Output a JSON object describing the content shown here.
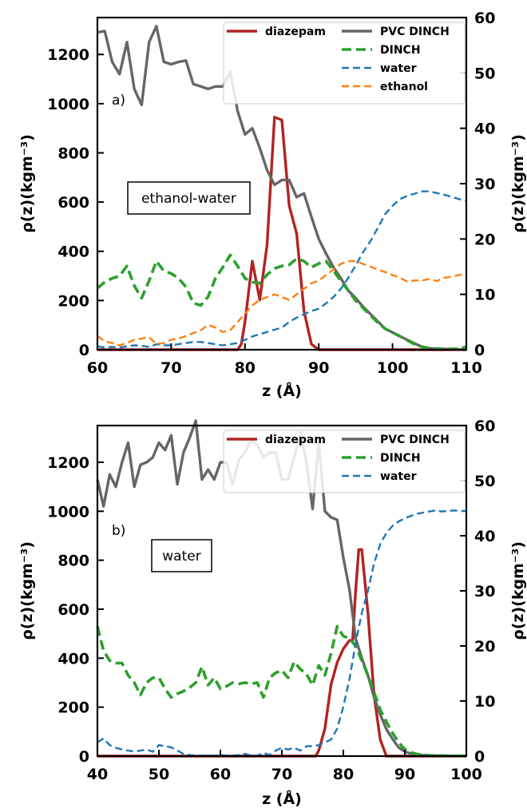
{
  "chart_data": [
    {
      "type": "line",
      "panel_label": "a)",
      "annotation": "ethanol-water",
      "xlabel": "z (Å)",
      "ylabel_left": "ρ(z)(kgm⁻³)",
      "ylabel_right": "ρ(z)(kgm⁻³)",
      "xlim": [
        60,
        110
      ],
      "ylim_left": [
        0,
        1350
      ],
      "ylim_right": [
        0,
        60
      ],
      "xticks": [
        "60",
        "70",
        "80",
        "90",
        "100",
        "110"
      ],
      "yticks_left": [
        "0",
        "200",
        "400",
        "600",
        "800",
        "1000",
        "1200"
      ],
      "yticks_right": [
        "0",
        "10",
        "20",
        "30",
        "40",
        "50",
        "60"
      ],
      "grid": false,
      "legend_position": "top-right",
      "series": [
        {
          "name": "diazepam",
          "axis": "right",
          "color": "#b22222",
          "style": "solid",
          "width": 3.4,
          "x": [
            60,
            79,
            79.5,
            80,
            81,
            82,
            83,
            84,
            85,
            86,
            87,
            88,
            89,
            90,
            110
          ],
          "y": [
            0,
            0,
            1,
            5,
            16,
            9,
            19,
            42,
            41.5,
            26,
            21,
            7,
            1,
            0,
            0
          ]
        },
        {
          "name": "PVC DINCH",
          "axis": "left",
          "color": "#666666",
          "style": "solid",
          "width": 3.4,
          "x": [
            60,
            61,
            62,
            63,
            64,
            65,
            66,
            67,
            68,
            69,
            70,
            71,
            72,
            73,
            74,
            75,
            76,
            77,
            78,
            79,
            80,
            81,
            82,
            83,
            84,
            85,
            86,
            87,
            88,
            89,
            90,
            91,
            92,
            93,
            94,
            95,
            96,
            97,
            98,
            99,
            100,
            101,
            102,
            103,
            104,
            105,
            106,
            107,
            108,
            109,
            110
          ],
          "y": [
            1290,
            1295,
            1170,
            1120,
            1250,
            1060,
            995,
            1250,
            1315,
            1170,
            1160,
            1170,
            1175,
            1080,
            1070,
            1060,
            1070,
            1070,
            1130,
            970,
            875,
            900,
            820,
            730,
            670,
            690,
            690,
            620,
            635,
            540,
            450,
            390,
            335,
            290,
            240,
            210,
            175,
            145,
            115,
            85,
            70,
            55,
            40,
            25,
            12,
            6,
            4,
            3,
            2,
            1,
            0
          ]
        },
        {
          "name": "DINCH",
          "axis": "left",
          "color": "#2ca02c",
          "style": "dashed-bold",
          "width": 3.6,
          "x": [
            60,
            61,
            62,
            63,
            64,
            65,
            66,
            67,
            68,
            69,
            70,
            71,
            72,
            73,
            74,
            75,
            76,
            77,
            78,
            79,
            80,
            81,
            82,
            83,
            84,
            85,
            86,
            87,
            88,
            89,
            90,
            91,
            92,
            93,
            94,
            95,
            96,
            97,
            98,
            99,
            100,
            101,
            102,
            103,
            104,
            105,
            106,
            107,
            108,
            109,
            110
          ],
          "y": [
            250,
            275,
            290,
            300,
            340,
            260,
            210,
            280,
            360,
            320,
            310,
            290,
            255,
            190,
            180,
            215,
            290,
            335,
            385,
            340,
            290,
            275,
            270,
            305,
            330,
            340,
            345,
            370,
            360,
            335,
            350,
            360,
            320,
            280,
            240,
            200,
            170,
            140,
            110,
            85,
            70,
            55,
            38,
            22,
            12,
            6,
            4,
            3,
            3,
            4,
            12
          ]
        },
        {
          "name": "water",
          "axis": "right",
          "color": "#1f77b4",
          "style": "dashed",
          "width": 2.4,
          "x": [
            60,
            61,
            62,
            63,
            64,
            65,
            66,
            67,
            68,
            69,
            70,
            71,
            72,
            73,
            74,
            75,
            76,
            77,
            78,
            79,
            80,
            81,
            82,
            83,
            84,
            85,
            86,
            87,
            88,
            89,
            90,
            91,
            92,
            93,
            94,
            95,
            96,
            97,
            98,
            99,
            100,
            101,
            102,
            103,
            104,
            105,
            106,
            107,
            108,
            109,
            110
          ],
          "y": [
            0.6,
            0.4,
            0.5,
            0.4,
            0.6,
            0.8,
            0.7,
            0.5,
            1.0,
            0.8,
            0.8,
            1.0,
            1.2,
            1.4,
            1.4,
            1.2,
            1.0,
            0.8,
            1.0,
            1.2,
            1.8,
            2.4,
            2.8,
            3.2,
            3.6,
            4.0,
            5.0,
            5.8,
            6.4,
            7.0,
            7.4,
            8.4,
            9.5,
            11.0,
            13.0,
            15.2,
            17.6,
            19.6,
            22.0,
            24.5,
            26.0,
            27.2,
            27.8,
            28.2,
            28.6,
            28.6,
            28.3,
            28.0,
            27.6,
            27.2,
            26.9
          ]
        },
        {
          "name": "ethanol",
          "axis": "right",
          "color": "#ff7f0e",
          "style": "dashed",
          "width": 2.4,
          "x": [
            60,
            61,
            62,
            63,
            64,
            65,
            66,
            67,
            68,
            69,
            70,
            71,
            72,
            73,
            74,
            75,
            76,
            77,
            78,
            79,
            80,
            81,
            82,
            83,
            84,
            85,
            86,
            87,
            88,
            89,
            90,
            91,
            92,
            93,
            94,
            95,
            96,
            97,
            98,
            99,
            100,
            101,
            102,
            103,
            104,
            105,
            106,
            107,
            108,
            109,
            110
          ],
          "y": [
            2.5,
            1.5,
            1.2,
            0.8,
            1.2,
            1.8,
            2.0,
            2.3,
            1.0,
            1.2,
            1.8,
            2.0,
            2.5,
            3.0,
            3.5,
            4.5,
            4.0,
            3.2,
            3.5,
            5.0,
            6.5,
            8.0,
            9.0,
            9.5,
            10.0,
            9.5,
            9.0,
            10.0,
            11.0,
            12.0,
            12.5,
            13.5,
            14.5,
            15.5,
            16.0,
            16.0,
            15.5,
            15.0,
            14.5,
            14.0,
            13.5,
            13.0,
            12.3,
            12.5,
            12.5,
            12.8,
            12.4,
            13.0,
            13.2,
            13.5,
            13.6
          ]
        }
      ]
    },
    {
      "type": "line",
      "panel_label": "b)",
      "annotation": "water",
      "xlabel": "z (Å)",
      "ylabel_left": "ρ(z)(kgm⁻³)",
      "ylabel_right": "ρ(z)(kgm⁻³)",
      "xlim": [
        40,
        100
      ],
      "ylim_left": [
        0,
        1350
      ],
      "ylim_right": [
        0,
        60
      ],
      "xticks": [
        "40",
        "50",
        "60",
        "70",
        "80",
        "90",
        "100"
      ],
      "yticks_left": [
        "0",
        "200",
        "400",
        "600",
        "800",
        "1000",
        "1200"
      ],
      "yticks_right": [
        "0",
        "10",
        "20",
        "30",
        "40",
        "50",
        "60"
      ],
      "grid": false,
      "legend_position": "top-right",
      "series": [
        {
          "name": "diazepam",
          "axis": "right",
          "color": "#b22222",
          "style": "solid",
          "width": 3.4,
          "x": [
            40,
            75.5,
            76,
            77,
            78,
            79,
            80,
            81,
            81.5,
            82,
            82.5,
            83,
            84,
            85,
            86,
            87,
            100
          ],
          "y": [
            0,
            0,
            1,
            5,
            13,
            17,
            19.5,
            21,
            21,
            30,
            37.5,
            37.5,
            26,
            11,
            3,
            0,
            0
          ]
        },
        {
          "name": "PVC DINCH",
          "axis": "left",
          "color": "#666666",
          "style": "solid",
          "width": 3.4,
          "x": [
            40,
            41,
            42,
            43,
            44,
            45,
            46,
            47,
            48,
            49,
            50,
            51,
            52,
            53,
            54,
            55,
            56,
            57,
            58,
            59,
            60,
            61,
            62,
            63,
            64,
            65,
            66,
            67,
            68,
            69,
            70,
            71,
            72,
            73,
            74,
            75,
            76,
            77,
            78,
            79,
            80,
            81,
            82,
            83,
            84,
            85,
            86,
            87,
            88,
            89,
            90,
            91,
            92,
            93,
            94,
            95,
            96,
            97,
            98,
            99,
            100
          ],
          "y": [
            1130,
            1020,
            1150,
            1100,
            1200,
            1280,
            1100,
            1190,
            1200,
            1220,
            1280,
            1250,
            1310,
            1110,
            1240,
            1300,
            1370,
            1130,
            1170,
            1130,
            1200,
            1200,
            1110,
            1210,
            1240,
            1290,
            1270,
            1220,
            1240,
            1240,
            1130,
            1130,
            1220,
            1320,
            1200,
            1010,
            1280,
            1000,
            975,
            965,
            810,
            680,
            480,
            400,
            330,
            240,
            170,
            110,
            70,
            35,
            18,
            10,
            6,
            4,
            3,
            2,
            2,
            1,
            1,
            1,
            0
          ]
        },
        {
          "name": "DINCH",
          "axis": "left",
          "color": "#2ca02c",
          "style": "dashed-bold",
          "width": 3.6,
          "x": [
            40,
            41,
            42,
            43,
            44,
            45,
            46,
            47,
            48,
            49,
            50,
            51,
            52,
            53,
            54,
            55,
            56,
            57,
            58,
            59,
            60,
            61,
            62,
            63,
            64,
            65,
            66,
            67,
            68,
            69,
            70,
            71,
            72,
            73,
            74,
            75,
            76,
            77,
            78,
            79,
            80,
            81,
            82,
            83,
            84,
            85,
            86,
            87,
            88,
            89,
            90,
            91,
            92,
            93,
            94,
            95,
            96,
            97,
            98,
            99,
            100
          ],
          "y": [
            530,
            430,
            390,
            380,
            380,
            330,
            300,
            250,
            300,
            320,
            320,
            275,
            240,
            255,
            265,
            280,
            300,
            365,
            290,
            320,
            275,
            285,
            300,
            295,
            300,
            295,
            300,
            240,
            320,
            340,
            350,
            320,
            385,
            355,
            335,
            290,
            370,
            330,
            420,
            530,
            490,
            480,
            450,
            390,
            330,
            260,
            190,
            140,
            95,
            55,
            28,
            15,
            8,
            5,
            3,
            2,
            2,
            1,
            1,
            1,
            0
          ]
        },
        {
          "name": "water",
          "axis": "right",
          "color": "#1f77b4",
          "style": "dashed",
          "width": 2.4,
          "x": [
            40,
            41,
            42,
            43,
            44,
            45,
            46,
            47,
            48,
            49,
            50,
            51,
            52,
            53,
            54,
            55,
            56,
            57,
            58,
            59,
            60,
            61,
            62,
            63,
            64,
            65,
            66,
            67,
            68,
            69,
            70,
            71,
            72,
            73,
            74,
            75,
            76,
            77,
            78,
            79,
            80,
            81,
            82,
            83,
            84,
            85,
            86,
            87,
            88,
            89,
            90,
            91,
            92,
            93,
            94,
            95,
            96,
            97,
            98,
            99,
            100
          ],
          "y": [
            2.5,
            3.2,
            2.0,
            1.5,
            1.2,
            1.0,
            0.8,
            1.0,
            1.2,
            0.8,
            2.0,
            1.8,
            1.6,
            1.0,
            0.4,
            0.2,
            0.1,
            0.1,
            0.1,
            0.1,
            0.2,
            0.1,
            0.1,
            0.2,
            0.4,
            0.1,
            0.1,
            0.6,
            0.2,
            1.0,
            1.5,
            1.2,
            1.5,
            1.0,
            1.8,
            1.8,
            2.0,
            2.5,
            3.0,
            5.0,
            9.0,
            14.0,
            20.5,
            26.0,
            30.0,
            35.0,
            38.5,
            40.5,
            41.8,
            42.6,
            43.2,
            43.6,
            44.0,
            44.2,
            44.4,
            44.6,
            44.4,
            44.5,
            44.6,
            44.5,
            44.5
          ]
        }
      ]
    }
  ]
}
